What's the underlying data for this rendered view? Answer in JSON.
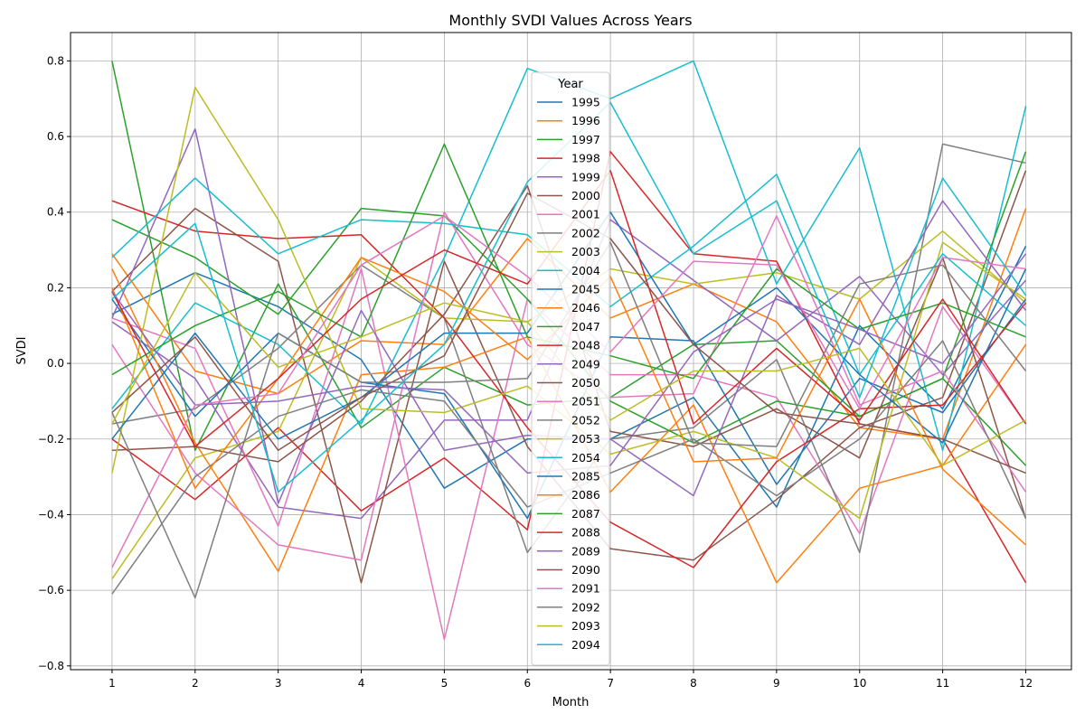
{
  "chart_data": {
    "type": "line",
    "title": "Monthly SVDI Values Across Years",
    "xlabel": "Month",
    "ylabel": "SVDI",
    "x": [
      1,
      2,
      3,
      4,
      5,
      6,
      7,
      8,
      9,
      10,
      11,
      12
    ],
    "xlim": [
      0.5,
      12.55
    ],
    "ylim": [
      -0.81,
      0.875
    ],
    "xticks": [
      1,
      2,
      3,
      4,
      5,
      6,
      7,
      8,
      9,
      10,
      11,
      12
    ],
    "yticks": [
      -0.8,
      -0.6,
      -0.4,
      -0.2,
      0.0,
      0.2,
      0.4,
      0.6,
      0.8
    ],
    "ytick_labels": [
      "−0.8",
      "−0.6",
      "−0.4",
      "−0.2",
      "0.0",
      "0.2",
      "0.4",
      "0.6",
      "0.8"
    ],
    "grid": true,
    "legend_title": "Year",
    "legend_position": "top-center",
    "series": [
      {
        "name": "1995",
        "color": "#1f77b4",
        "values": [
          0.13,
          0.24,
          0.15,
          0.01,
          -0.33,
          -0.2,
          -0.2,
          -0.09,
          -0.38,
          0.1,
          -0.12,
          0.31
        ]
      },
      {
        "name": "1996",
        "color": "#ff7f0e",
        "values": [
          0.29,
          -0.02,
          -0.08,
          0.06,
          0.05,
          0.33,
          0.12,
          0.21,
          0.11,
          -0.17,
          -0.2,
          0.41
        ]
      },
      {
        "name": "1997",
        "color": "#2ca02c",
        "values": [
          0.8,
          -0.23,
          0.21,
          -0.17,
          -0.01,
          -0.11,
          -0.09,
          0.05,
          0.06,
          -0.14,
          -0.04,
          -0.27
        ]
      },
      {
        "name": "1998",
        "color": "#d62728",
        "values": [
          -0.2,
          -0.36,
          -0.17,
          -0.39,
          -0.25,
          -0.44,
          0.56,
          0.29,
          0.27,
          -0.16,
          -0.2,
          -0.58
        ]
      },
      {
        "name": "1999",
        "color": "#9467bd",
        "values": [
          0.11,
          -0.04,
          -0.38,
          -0.41,
          -0.15,
          -0.15,
          0.38,
          0.22,
          0.06,
          0.23,
          -0.03,
          0.22
        ]
      },
      {
        "name": "2000",
        "color": "#8c564b",
        "values": [
          0.19,
          0.41,
          0.27,
          -0.58,
          0.27,
          -0.22,
          -0.49,
          -0.52,
          -0.36,
          -0.17,
          -0.09,
          0.51
        ]
      },
      {
        "name": "2001",
        "color": "#e377c2",
        "values": [
          0.12,
          0.04,
          -0.43,
          0.25,
          -0.73,
          0.17,
          -0.03,
          -0.03,
          -0.09,
          -0.45,
          0.15,
          -0.16
        ]
      },
      {
        "name": "2002",
        "color": "#7f7f7f",
        "values": [
          -0.16,
          -0.12,
          0.04,
          0.26,
          0.12,
          -0.5,
          -0.2,
          -0.17,
          0.01,
          -0.5,
          0.58,
          0.53
        ]
      },
      {
        "name": "2003",
        "color": "#bcbd22",
        "values": [
          -0.57,
          -0.25,
          -0.18,
          0.28,
          0.12,
          0.11,
          0.25,
          0.21,
          0.24,
          0.17,
          0.35,
          0.16
        ]
      },
      {
        "name": "2004",
        "color": "#17becf",
        "values": [
          -0.12,
          0.16,
          0.05,
          -0.16,
          0.28,
          0.78,
          0.7,
          0.8,
          0.21,
          0.57,
          -0.23,
          0.68
        ]
      },
      {
        "name": "2045",
        "color": "#1f77b4",
        "values": [
          0.17,
          -0.14,
          0.08,
          -0.05,
          -0.08,
          -0.41,
          0.07,
          0.06,
          -0.32,
          -0.04,
          -0.13,
          0.17
        ]
      },
      {
        "name": "2046",
        "color": "#ff7f0e",
        "values": [
          0.25,
          -0.21,
          -0.55,
          -0.03,
          -0.01,
          0.07,
          -0.34,
          -0.11,
          -0.58,
          -0.33,
          -0.27,
          0.05
        ]
      },
      {
        "name": "2047",
        "color": "#2ca02c",
        "values": [
          0.38,
          0.28,
          0.13,
          0.41,
          0.39,
          0.17,
          -0.1,
          -0.21,
          -0.1,
          -0.14,
          -0.04,
          0.56
        ]
      },
      {
        "name": "2048",
        "color": "#d62728",
        "values": [
          0.43,
          0.35,
          0.33,
          0.34,
          0.12,
          -0.17,
          -0.42,
          -0.54,
          -0.26,
          -0.12,
          -0.11,
          0.16
        ]
      },
      {
        "name": "2049",
        "color": "#9467bd",
        "values": [
          0.12,
          0.62,
          -0.37,
          0.14,
          -0.23,
          -0.19,
          -0.2,
          -0.35,
          0.18,
          0.05,
          0.43,
          0.14
        ]
      },
      {
        "name": "2050",
        "color": "#8c564b",
        "values": [
          -0.23,
          -0.22,
          -0.26,
          -0.1,
          0.13,
          0.47,
          -0.18,
          -0.22,
          -0.12,
          -0.25,
          0.28,
          -0.41
        ]
      },
      {
        "name": "2051",
        "color": "#e377c2",
        "values": [
          0.05,
          -0.29,
          -0.48,
          -0.52,
          0.4,
          0.05,
          -0.09,
          -0.08,
          0.39,
          -0.11,
          -0.02,
          -0.34
        ]
      },
      {
        "name": "2052",
        "color": "#7f7f7f",
        "values": [
          -0.61,
          -0.3,
          -0.14,
          -0.07,
          -0.1,
          -0.38,
          -0.29,
          -0.2,
          -0.35,
          -0.2,
          0.06,
          -0.41
        ]
      },
      {
        "name": "2053",
        "color": "#bcbd22",
        "values": [
          -0.29,
          0.73,
          0.38,
          -0.12,
          -0.13,
          -0.06,
          -0.24,
          -0.18,
          -0.25,
          -0.41,
          0.32,
          0.17
        ]
      },
      {
        "name": "2054",
        "color": "#17becf",
        "values": [
          0.28,
          0.49,
          0.29,
          0.38,
          0.37,
          0.34,
          0.15,
          0.31,
          0.5,
          -0.03,
          0.29,
          0.1
        ]
      },
      {
        "name": "2085",
        "color": "#1f77b4",
        "values": [
          -0.2,
          0.08,
          -0.2,
          -0.09,
          0.08,
          0.08,
          0.4,
          0.05,
          0.2,
          -0.03,
          -0.21,
          0.25
        ]
      },
      {
        "name": "2086",
        "color": "#ff7f0e",
        "values": [
          0.2,
          -0.33,
          -0.04,
          0.28,
          0.19,
          0.01,
          0.23,
          -0.26,
          -0.25,
          0.17,
          -0.28,
          -0.48
        ]
      },
      {
        "name": "2087",
        "color": "#2ca02c",
        "values": [
          -0.03,
          0.1,
          0.19,
          0.07,
          0.58,
          0.07,
          0.02,
          -0.04,
          0.25,
          0.09,
          0.16,
          0.07
        ]
      },
      {
        "name": "2088",
        "color": "#d62728",
        "values": [
          0.19,
          -0.22,
          -0.04,
          0.17,
          0.3,
          0.21,
          0.51,
          -0.16,
          0.04,
          -0.15,
          0.17,
          -0.16
        ]
      },
      {
        "name": "2089",
        "color": "#9467bd",
        "values": [
          0.19,
          -0.11,
          -0.1,
          -0.06,
          -0.07,
          -0.29,
          -0.27,
          0.03,
          0.17,
          0.09,
          0.0,
          0.29
        ]
      },
      {
        "name": "2090",
        "color": "#8c564b",
        "values": [
          -0.13,
          0.07,
          -0.23,
          -0.09,
          0.02,
          0.45,
          0.33,
          0.05,
          -0.13,
          -0.16,
          -0.2,
          -0.29
        ]
      },
      {
        "name": "2091",
        "color": "#e377c2",
        "values": [
          -0.54,
          -0.11,
          -0.08,
          0.26,
          0.39,
          0.23,
          0.03,
          0.27,
          0.26,
          -0.12,
          0.28,
          0.25
        ]
      },
      {
        "name": "2092",
        "color": "#7f7f7f",
        "values": [
          -0.13,
          -0.62,
          0.08,
          -0.05,
          -0.05,
          -0.04,
          0.32,
          -0.21,
          -0.22,
          0.21,
          0.26,
          -0.02
        ]
      },
      {
        "name": "2093",
        "color": "#bcbd22",
        "values": [
          -0.16,
          0.24,
          -0.01,
          0.07,
          0.16,
          0.11,
          -0.15,
          -0.02,
          -0.02,
          0.04,
          -0.27,
          -0.15
        ]
      },
      {
        "name": "2094",
        "color": "#17becf",
        "values": [
          0.17,
          0.37,
          -0.34,
          -0.15,
          0.05,
          0.48,
          0.69,
          0.29,
          0.43,
          -0.09,
          0.49,
          0.18
        ]
      }
    ]
  }
}
